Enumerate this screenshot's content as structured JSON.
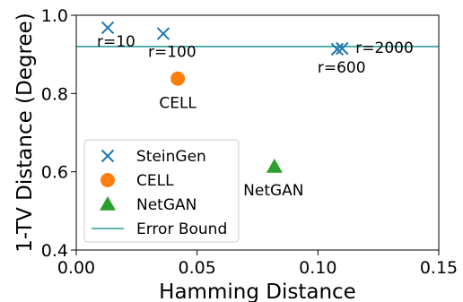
{
  "chart_data": {
    "type": "scatter",
    "title": "",
    "xlabel": "Hamming Distance",
    "ylabel": "1-TV Distance (Degree)",
    "xlim": [
      0.0,
      0.15
    ],
    "ylim": [
      0.4,
      1.0
    ],
    "x_ticks": [
      0.0,
      0.05,
      0.1,
      0.15
    ],
    "x_tick_labels": [
      "0.00",
      "0.05",
      "0.10",
      "0.15"
    ],
    "y_ticks": [
      0.4,
      0.6,
      0.8,
      1.0
    ],
    "y_tick_labels": [
      "0.4",
      "0.6",
      "0.8",
      "1.0"
    ],
    "grid": false,
    "legend_position": "lower-left",
    "series": [
      {
        "name": "SteinGen",
        "marker": "x",
        "color": "#1f77b4",
        "points": [
          {
            "x": 0.013,
            "y": 0.968,
            "label": "r=10"
          },
          {
            "x": 0.036,
            "y": 0.953,
            "label": "r=100"
          },
          {
            "x": 0.108,
            "y": 0.913,
            "label": "r=600"
          },
          {
            "x": 0.11,
            "y": 0.915,
            "label": "r=2000"
          }
        ]
      },
      {
        "name": "CELL",
        "marker": "circle",
        "color": "#ff7f0e",
        "points": [
          {
            "x": 0.042,
            "y": 0.838,
            "label": "CELL"
          }
        ]
      },
      {
        "name": "NetGAN",
        "marker": "triangle",
        "color": "#2ca02c",
        "points": [
          {
            "x": 0.082,
            "y": 0.613,
            "label": "NetGAN"
          }
        ]
      }
    ],
    "reference_lines": [
      {
        "name": "Error Bound",
        "orientation": "horizontal",
        "y": 0.92,
        "color": "#2a9d9a"
      }
    ]
  }
}
